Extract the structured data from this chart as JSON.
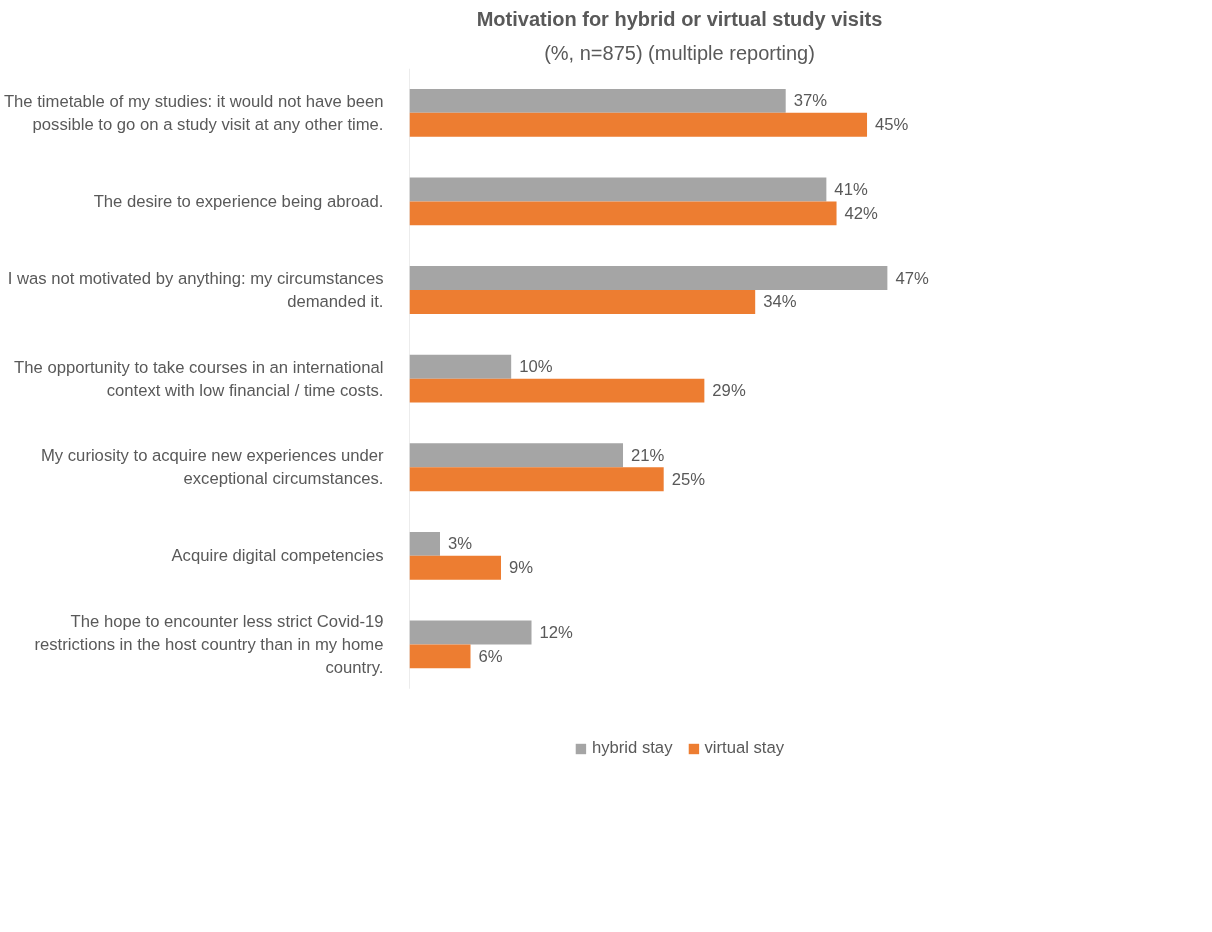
{
  "chart_data": {
    "type": "bar",
    "orientation": "horizontal",
    "title": "Motivation for hybrid or virtual study visits",
    "subtitle": "(%, n=875) (multiple reporting)",
    "categories": [
      "The timetable of my studies: it would not have been possible to go on a study visit at any other time.",
      "The desire to experience being abroad.",
      "I was not motivated by anything: my circumstances demanded it.",
      "The opportunity to take courses in an international context with low financial / time costs.",
      "My curiosity to acquire new experiences under exceptional circumstances.",
      "Acquire digital competencies",
      "The hope to encounter less strict Covid-19 restrictions in the host country than in my home country."
    ],
    "series": [
      {
        "name": "hybrid stay",
        "color": "#a5a5a5",
        "values": [
          37,
          41,
          47,
          10,
          21,
          3,
          12
        ],
        "value_labels": [
          "37%",
          "41%",
          "47%",
          "10%",
          "21%",
          "3%",
          "12%"
        ]
      },
      {
        "name": "virtual stay",
        "color": "#ed7d31",
        "values": [
          45,
          42,
          34,
          29,
          25,
          9,
          6
        ],
        "value_labels": [
          "45%",
          "42%",
          "34%",
          "29%",
          "25%",
          "9%",
          "6%"
        ]
      }
    ],
    "legend": "bottom",
    "grid": false
  }
}
